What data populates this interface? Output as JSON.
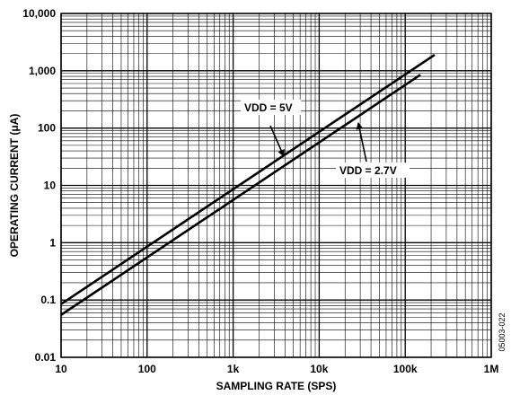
{
  "chart_data": {
    "type": "line",
    "xlabel": "SAMPLING RATE (SPS)",
    "ylabel": "OPERATING CURRENT (μA)",
    "x_scale": "log",
    "y_scale": "log",
    "xlim": [
      10,
      1000000
    ],
    "ylim": [
      0.01,
      10000
    ],
    "grid": true,
    "x_ticks": [
      10,
      100,
      1000,
      10000,
      100000,
      1000000
    ],
    "x_tick_labels": [
      "10",
      "100",
      "1k",
      "10k",
      "100k",
      "1M"
    ],
    "y_ticks": [
      0.01,
      0.1,
      1,
      10,
      100,
      1000,
      10000
    ],
    "y_tick_labels": [
      "0.01",
      "0.1",
      "1",
      "10",
      "100",
      "1,000",
      "10,000"
    ],
    "series": [
      {
        "name": "VDD = 5V",
        "x": [
          10,
          220000
        ],
        "y": [
          0.085,
          1900
        ]
      },
      {
        "name": "VDD = 2.7V",
        "x": [
          10,
          150000
        ],
        "y": [
          0.055,
          850
        ]
      }
    ],
    "annotations": [
      {
        "text": "VDD = 5V",
        "series": 0
      },
      {
        "text": "VDD = 2.7V",
        "series": 1
      }
    ],
    "figure_code": "05003-022"
  }
}
